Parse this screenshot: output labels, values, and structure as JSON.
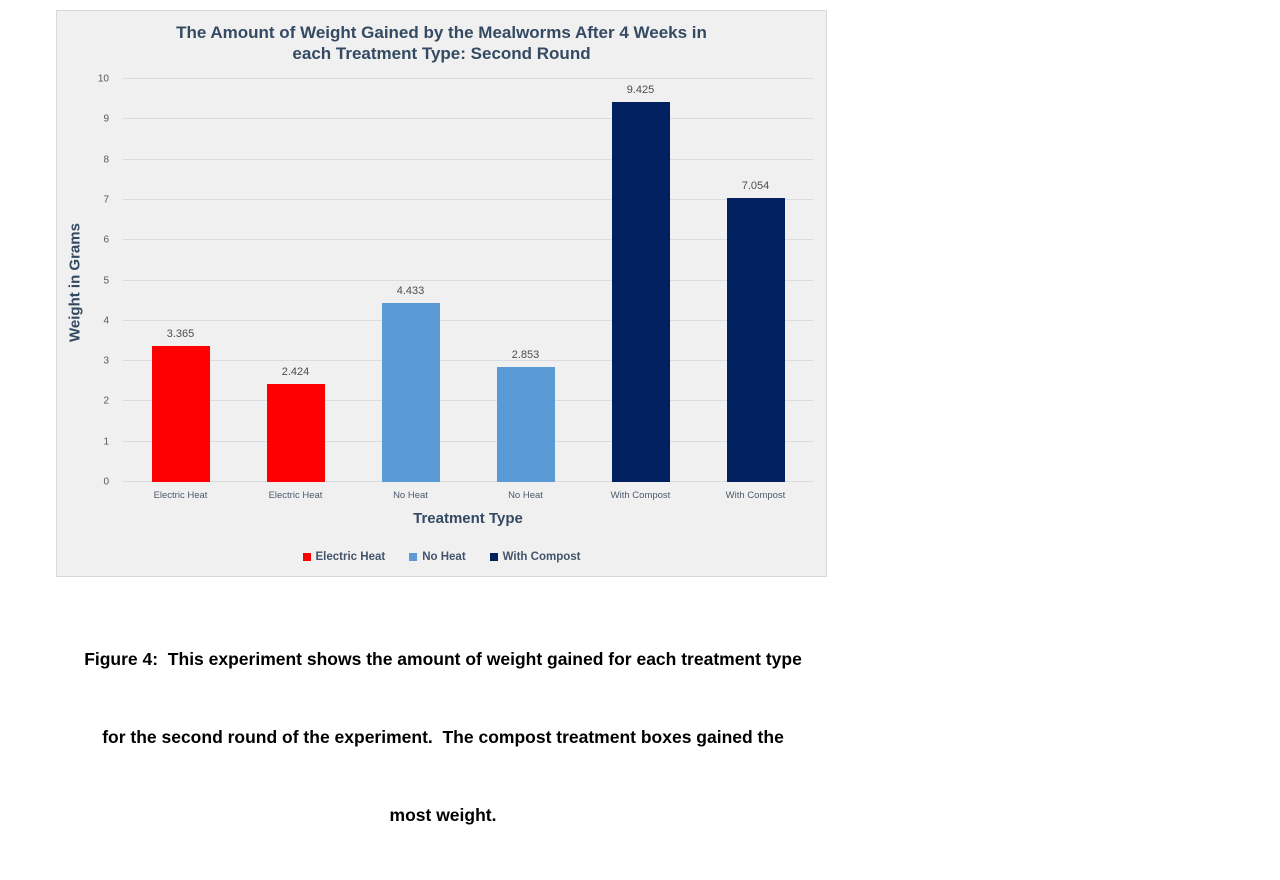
{
  "colors": {
    "chart_background": "#F0F0F0",
    "chart_border": "#D8D8D8",
    "gridline": "#DADAE2",
    "title_text": "#344A63",
    "tick_text": "#595959",
    "category_text": "#4d5a6a",
    "legend_text": "#44546A",
    "caption_text": "#000000",
    "electric_heat": "#FF0000",
    "no_heat": "#5B9BD5",
    "with_compost": "#002060"
  },
  "chart_data": {
    "type": "bar",
    "title": "The Amount of Weight Gained by the Mealworms After 4 Weeks in\neach Treatment Type: Second Round",
    "xlabel": "Treatment Type",
    "ylabel": "Weight in Grams",
    "categories": [
      "Electric Heat",
      "Electric Heat",
      "No Heat",
      "No Heat",
      "With Compost",
      "With Compost"
    ],
    "values": [
      3.365,
      2.424,
      4.433,
      2.853,
      9.425,
      7.054
    ],
    "data_labels": [
      "3.365",
      "2.424",
      "4.433",
      "2.853",
      "9.425",
      "7.054"
    ],
    "bar_colors": [
      "#FF0000",
      "#FF0000",
      "#5B9BD5",
      "#5B9BD5",
      "#002060",
      "#002060"
    ],
    "ylim": [
      0,
      10
    ],
    "ytick_step": 1,
    "grid": true,
    "legend_position": "bottom",
    "legend": [
      {
        "label": "Electric Heat",
        "color": "#FF0000"
      },
      {
        "label": "No Heat",
        "color": "#5B9BD5"
      },
      {
        "label": "With Compost",
        "color": "#002060"
      }
    ]
  },
  "caption": {
    "lines": [
      "Figure 4:  This experiment shows the amount of weight gained for each treatment type",
      "for the second round of the experiment.  The compost treatment boxes gained the",
      "most weight."
    ]
  }
}
